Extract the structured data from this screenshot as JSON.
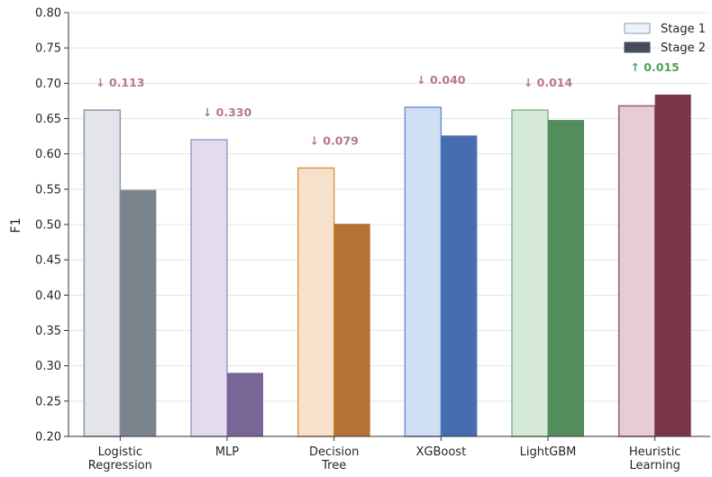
{
  "chart_data": {
    "type": "bar",
    "ylabel": "F1",
    "xlabel": "",
    "title": "",
    "ylim": [
      0.2,
      0.8
    ],
    "yticks": [
      "0.20",
      "0.25",
      "0.30",
      "0.35",
      "0.40",
      "0.45",
      "0.50",
      "0.55",
      "0.60",
      "0.65",
      "0.70",
      "0.75",
      "0.80"
    ],
    "grid": "horizontal",
    "legend_position": "top-right",
    "series_names": [
      "Stage 1",
      "Stage 2"
    ],
    "legend_fill": {
      "Stage 1": "#eef3fa",
      "Stage 2": "#454d5c"
    },
    "legend_stroke": {
      "Stage 1": "#8a9ab0",
      "Stage 2": "#454d5c"
    },
    "categories": [
      {
        "lines": [
          "Logistic",
          "Regression"
        ],
        "stage1": 0.662,
        "stage2": 0.549,
        "delta": "↓ 0.113",
        "direction": "down",
        "fill1": "#e3e5ea",
        "stroke1": "#8e9aa8",
        "fill2": "#7b838d"
      },
      {
        "lines": [
          "MLP"
        ],
        "stage1": 0.62,
        "stage2": 0.29,
        "delta": "↓ 0.330",
        "direction": "down",
        "fill1": "#e3dcef",
        "stroke1": "#a596c8",
        "fill2": "#776696"
      },
      {
        "lines": [
          "Decision",
          "Tree"
        ],
        "stage1": 0.58,
        "stage2": 0.501,
        "delta": "↓ 0.079",
        "direction": "down",
        "fill1": "#f6e2cc",
        "stroke1": "#e09a4a",
        "fill2": "#b47334"
      },
      {
        "lines": [
          "XGBoost"
        ],
        "stage1": 0.666,
        "stage2": 0.626,
        "delta": "↓ 0.040",
        "direction": "down",
        "fill1": "#d1dff3",
        "stroke1": "#6a94d6",
        "fill2": "#466daf"
      },
      {
        "lines": [
          "LightGBM"
        ],
        "stage1": 0.662,
        "stage2": 0.648,
        "delta": "↓ 0.014",
        "direction": "down",
        "fill1": "#d6e9da",
        "stroke1": "#7cb88a",
        "fill2": "#538c5d"
      },
      {
        "lines": [
          "Heuristic",
          "Learning"
        ],
        "stage1": 0.668,
        "stage2": 0.684,
        "delta": "↑ 0.015",
        "direction": "up",
        "fill1": "#e6ccd3",
        "stroke1": "#9c5c6c",
        "fill2": "#7a3648"
      }
    ],
    "delta_colors": {
      "down": "#b5788c",
      "up": "#4fa35c"
    }
  }
}
